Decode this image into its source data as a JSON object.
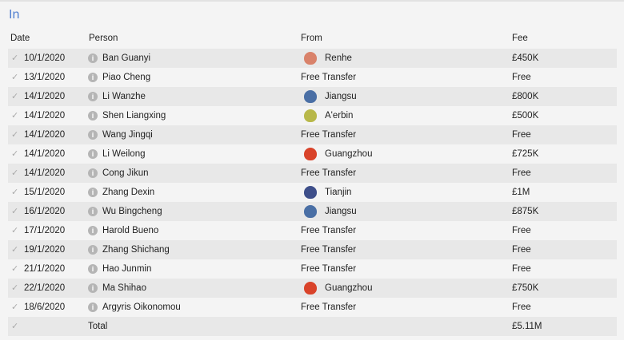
{
  "title": "In",
  "columns": {
    "date": "Date",
    "person": "Person",
    "from": "From",
    "fee": "Fee"
  },
  "rows": [
    {
      "date": "10/1/2020",
      "person": "Ban Guanyi",
      "from": "Renhe",
      "club": true,
      "badge_color": "#d9826a",
      "fee": "£450K"
    },
    {
      "date": "13/1/2020",
      "person": "Piao Cheng",
      "from": "Free Transfer",
      "club": false,
      "fee": "Free"
    },
    {
      "date": "14/1/2020",
      "person": "Li Wanzhe",
      "from": "Jiangsu",
      "club": true,
      "badge_color": "#4a6fa5",
      "fee": "£800K"
    },
    {
      "date": "14/1/2020",
      "person": "Shen Liangxing",
      "from": "A'erbin",
      "club": true,
      "badge_color": "#b8b84a",
      "fee": "£500K"
    },
    {
      "date": "14/1/2020",
      "person": "Wang Jingqi",
      "from": "Free Transfer",
      "club": false,
      "fee": "Free"
    },
    {
      "date": "14/1/2020",
      "person": "Li Weilong",
      "from": "Guangzhou",
      "club": true,
      "badge_color": "#d9432a",
      "fee": "£725K"
    },
    {
      "date": "14/1/2020",
      "person": "Cong Jikun",
      "from": "Free Transfer",
      "club": false,
      "fee": "Free"
    },
    {
      "date": "15/1/2020",
      "person": "Zhang Dexin",
      "from": "Tianjin",
      "club": true,
      "badge_color": "#3e4f8a",
      "fee": "£1M"
    },
    {
      "date": "16/1/2020",
      "person": "Wu Bingcheng",
      "from": "Jiangsu",
      "club": true,
      "badge_color": "#4a6fa5",
      "fee": "£875K"
    },
    {
      "date": "17/1/2020",
      "person": "Harold Bueno",
      "from": "Free Transfer",
      "club": false,
      "fee": "Free"
    },
    {
      "date": "19/1/2020",
      "person": "Zhang Shichang",
      "from": "Free Transfer",
      "club": false,
      "fee": "Free"
    },
    {
      "date": "21/1/2020",
      "person": "Hao Junmin",
      "from": "Free Transfer",
      "club": false,
      "fee": "Free"
    },
    {
      "date": "22/1/2020",
      "person": "Ma Shihao",
      "from": "Guangzhou",
      "club": true,
      "badge_color": "#d9432a",
      "fee": "£750K"
    },
    {
      "date": "18/6/2020",
      "person": "Argyris Oikonomou",
      "from": "Free Transfer",
      "club": false,
      "fee": "Free"
    }
  ],
  "total": {
    "label": "Total",
    "fee": "£5.11M"
  },
  "icons": {
    "tick": "checkmark-icon",
    "info": "info-icon"
  }
}
